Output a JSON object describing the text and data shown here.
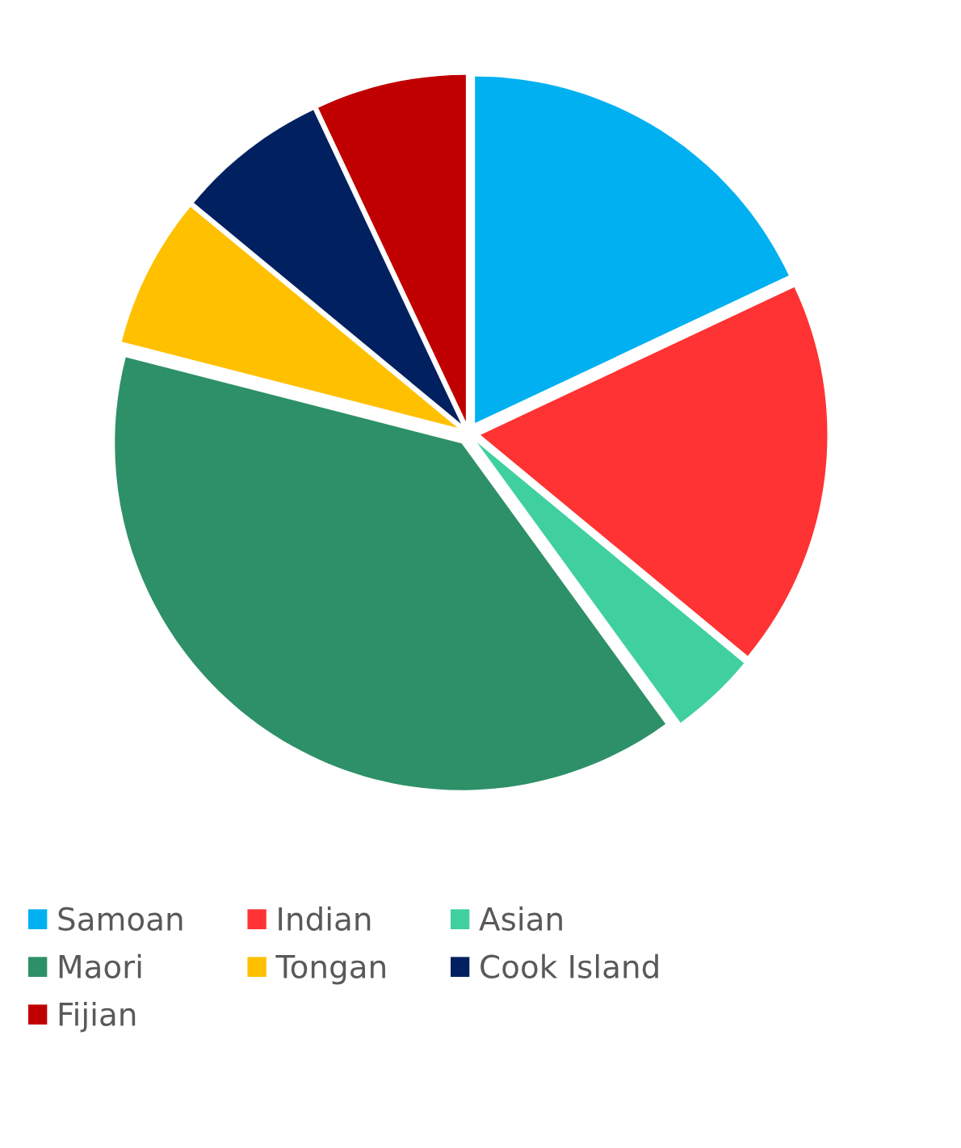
{
  "chart_data": {
    "type": "pie",
    "categories": [
      "Samoan",
      "Indian",
      "Asian",
      "Maori",
      "Tongan",
      "Cook Island",
      "Fijian"
    ],
    "values": [
      18,
      18,
      4,
      39,
      7,
      7,
      7
    ],
    "colors": [
      "#00b0f0",
      "#ff3333",
      "#40d0a0",
      "#2e9068",
      "#ffc000",
      "#002060",
      "#c00000"
    ],
    "legend": "bottom"
  }
}
